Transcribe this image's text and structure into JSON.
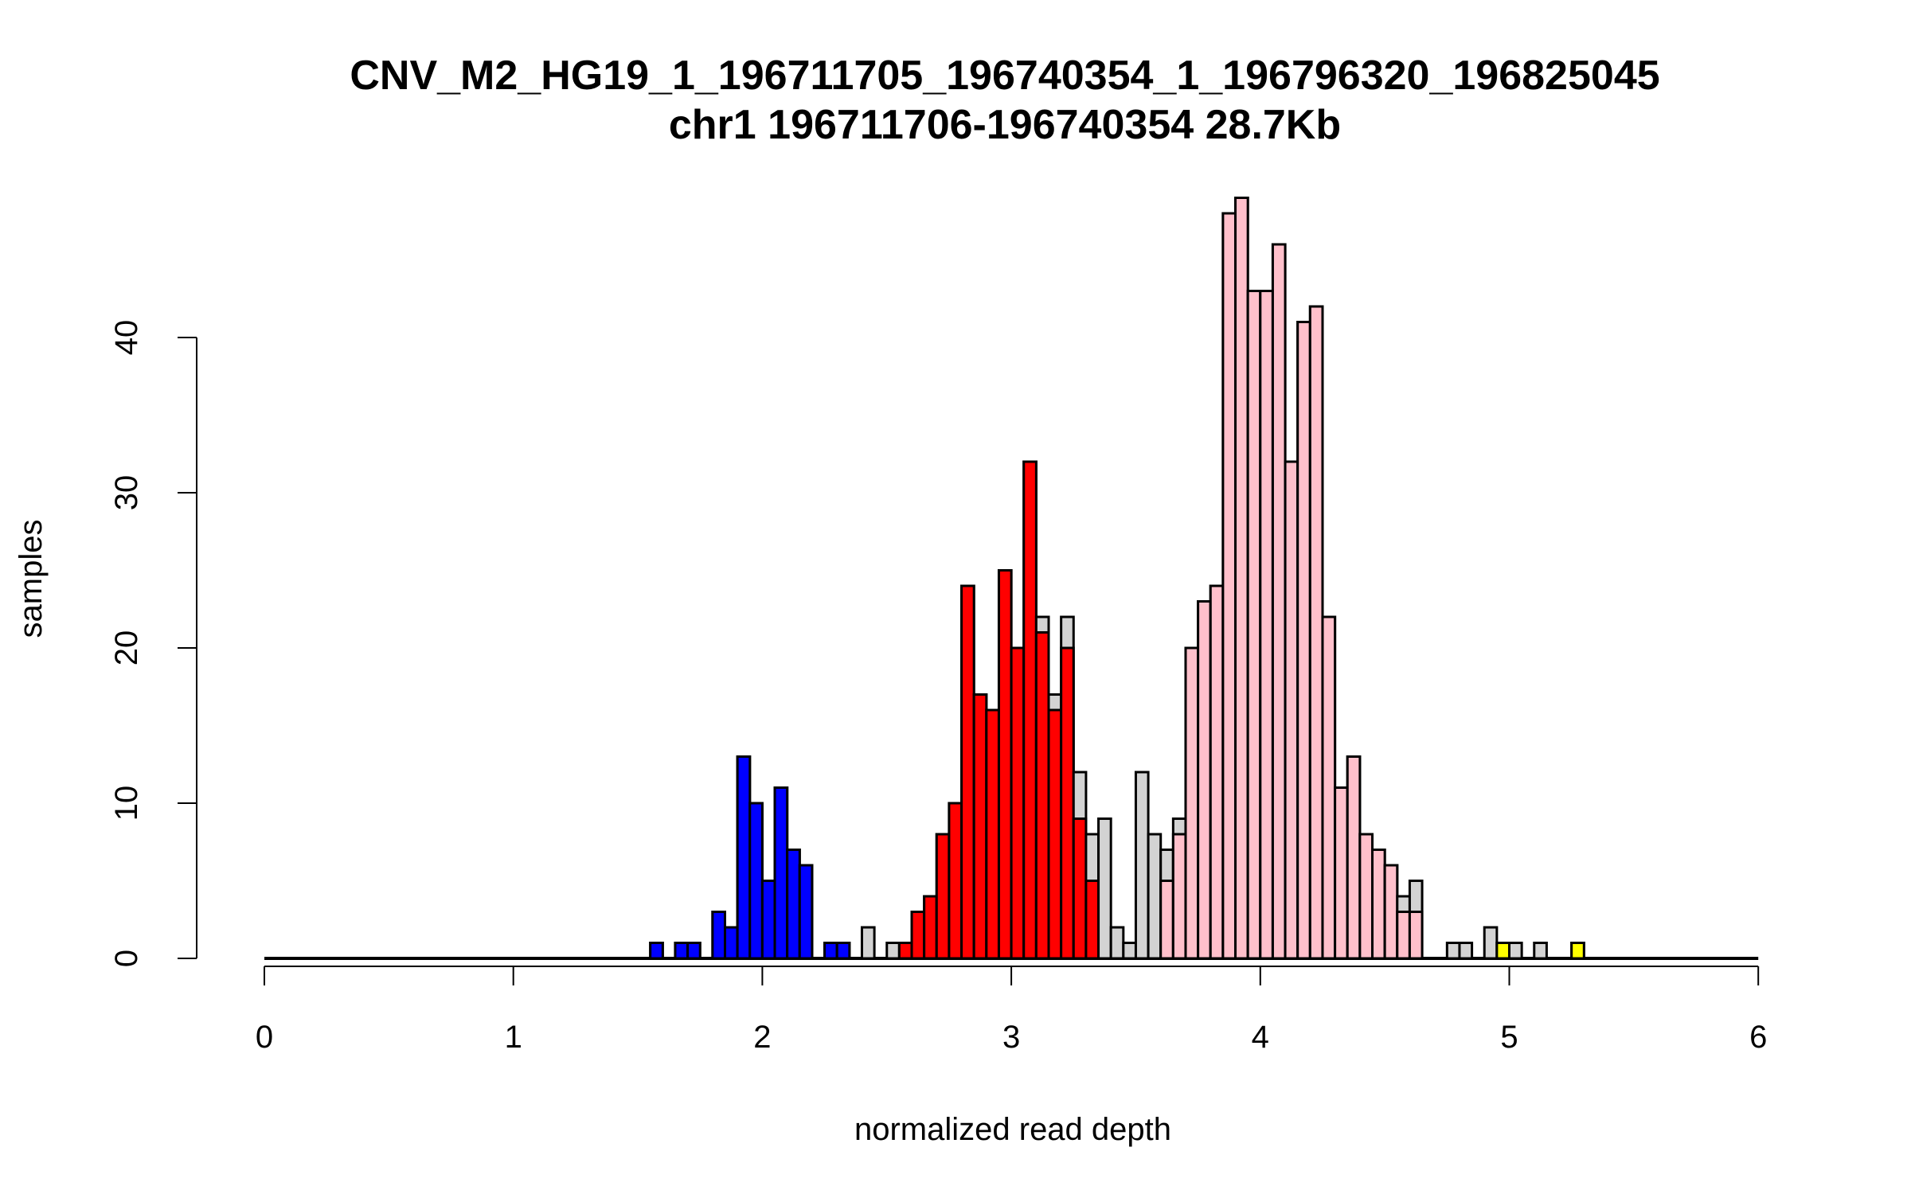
{
  "chart_data": {
    "type": "bar",
    "title": "CNV_M2_HG19_1_196711705_196740354_1_196796320_196825045",
    "subtitle": "chr1 196711706-196740354 28.7Kb",
    "xlabel": "normalized read depth",
    "ylabel": "samples",
    "xlim": [
      0,
      6
    ],
    "ylim": [
      0,
      49
    ],
    "bin_width": 0.05,
    "x_ticks": [
      "0",
      "1",
      "2",
      "3",
      "4",
      "5",
      "6"
    ],
    "y_ticks": [
      "0",
      "10",
      "20",
      "30",
      "40"
    ],
    "colors": {
      "all": "#d3d3d3",
      "blue": "#0000ff",
      "red": "#ff0000",
      "pink": "#ffc0cb",
      "yellow": "#ffff00"
    },
    "bins": [
      {
        "x": 1.55,
        "total": 1,
        "colored": 1,
        "group": "blue"
      },
      {
        "x": 1.65,
        "total": 1,
        "colored": 1,
        "group": "blue"
      },
      {
        "x": 1.7,
        "total": 1,
        "colored": 1,
        "group": "blue"
      },
      {
        "x": 1.8,
        "total": 3,
        "colored": 3,
        "group": "blue"
      },
      {
        "x": 1.85,
        "total": 2,
        "colored": 2,
        "group": "blue"
      },
      {
        "x": 1.9,
        "total": 13,
        "colored": 13,
        "group": "blue"
      },
      {
        "x": 1.95,
        "total": 10,
        "colored": 10,
        "group": "blue"
      },
      {
        "x": 2.0,
        "total": 5,
        "colored": 5,
        "group": "blue"
      },
      {
        "x": 2.05,
        "total": 11,
        "colored": 11,
        "group": "blue"
      },
      {
        "x": 2.1,
        "total": 7,
        "colored": 7,
        "group": "blue"
      },
      {
        "x": 2.15,
        "total": 6,
        "colored": 6,
        "group": "blue"
      },
      {
        "x": 2.25,
        "total": 1,
        "colored": 1,
        "group": "blue"
      },
      {
        "x": 2.3,
        "total": 1,
        "colored": 1,
        "group": "blue"
      },
      {
        "x": 2.4,
        "total": 2,
        "colored": 0,
        "group": "none"
      },
      {
        "x": 2.5,
        "total": 1,
        "colored": 0,
        "group": "none"
      },
      {
        "x": 2.55,
        "total": 1,
        "colored": 1,
        "group": "red"
      },
      {
        "x": 2.6,
        "total": 3,
        "colored": 3,
        "group": "red"
      },
      {
        "x": 2.65,
        "total": 4,
        "colored": 4,
        "group": "red"
      },
      {
        "x": 2.7,
        "total": 8,
        "colored": 8,
        "group": "red"
      },
      {
        "x": 2.75,
        "total": 10,
        "colored": 10,
        "group": "red"
      },
      {
        "x": 2.8,
        "total": 24,
        "colored": 24,
        "group": "red"
      },
      {
        "x": 2.85,
        "total": 17,
        "colored": 17,
        "group": "red"
      },
      {
        "x": 2.9,
        "total": 16,
        "colored": 16,
        "group": "red"
      },
      {
        "x": 2.95,
        "total": 25,
        "colored": 25,
        "group": "red"
      },
      {
        "x": 3.0,
        "total": 20,
        "colored": 20,
        "group": "red"
      },
      {
        "x": 3.05,
        "total": 32,
        "colored": 32,
        "group": "red"
      },
      {
        "x": 3.1,
        "total": 22,
        "colored": 21,
        "group": "red"
      },
      {
        "x": 3.15,
        "total": 17,
        "colored": 16,
        "group": "red"
      },
      {
        "x": 3.2,
        "total": 22,
        "colored": 20,
        "group": "red"
      },
      {
        "x": 3.25,
        "total": 12,
        "colored": 9,
        "group": "red"
      },
      {
        "x": 3.3,
        "total": 8,
        "colored": 5,
        "group": "red"
      },
      {
        "x": 3.35,
        "total": 9,
        "colored": 0,
        "group": "none"
      },
      {
        "x": 3.4,
        "total": 2,
        "colored": 0,
        "group": "none"
      },
      {
        "x": 3.45,
        "total": 1,
        "colored": 0,
        "group": "none"
      },
      {
        "x": 3.5,
        "total": 12,
        "colored": 0,
        "group": "none"
      },
      {
        "x": 3.55,
        "total": 8,
        "colored": 0,
        "group": "none"
      },
      {
        "x": 3.6,
        "total": 7,
        "colored": 5,
        "group": "pink"
      },
      {
        "x": 3.65,
        "total": 9,
        "colored": 8,
        "group": "pink"
      },
      {
        "x": 3.7,
        "total": 20,
        "colored": 20,
        "group": "pink"
      },
      {
        "x": 3.75,
        "total": 23,
        "colored": 23,
        "group": "pink"
      },
      {
        "x": 3.8,
        "total": 24,
        "colored": 24,
        "group": "pink"
      },
      {
        "x": 3.85,
        "total": 48,
        "colored": 48,
        "group": "pink"
      },
      {
        "x": 3.9,
        "total": 49,
        "colored": 49,
        "group": "pink"
      },
      {
        "x": 3.95,
        "total": 43,
        "colored": 43,
        "group": "pink"
      },
      {
        "x": 4.0,
        "total": 43,
        "colored": 43,
        "group": "pink"
      },
      {
        "x": 4.05,
        "total": 46,
        "colored": 46,
        "group": "pink"
      },
      {
        "x": 4.1,
        "total": 32,
        "colored": 32,
        "group": "pink"
      },
      {
        "x": 4.15,
        "total": 41,
        "colored": 41,
        "group": "pink"
      },
      {
        "x": 4.2,
        "total": 42,
        "colored": 42,
        "group": "pink"
      },
      {
        "x": 4.25,
        "total": 22,
        "colored": 22,
        "group": "pink"
      },
      {
        "x": 4.3,
        "total": 11,
        "colored": 11,
        "group": "pink"
      },
      {
        "x": 4.35,
        "total": 13,
        "colored": 13,
        "group": "pink"
      },
      {
        "x": 4.4,
        "total": 8,
        "colored": 8,
        "group": "pink"
      },
      {
        "x": 4.45,
        "total": 7,
        "colored": 7,
        "group": "pink"
      },
      {
        "x": 4.5,
        "total": 6,
        "colored": 6,
        "group": "pink"
      },
      {
        "x": 4.55,
        "total": 4,
        "colored": 3,
        "group": "pink"
      },
      {
        "x": 4.6,
        "total": 5,
        "colored": 3,
        "group": "pink"
      },
      {
        "x": 4.75,
        "total": 1,
        "colored": 0,
        "group": "none"
      },
      {
        "x": 4.8,
        "total": 1,
        "colored": 0,
        "group": "none"
      },
      {
        "x": 4.9,
        "total": 2,
        "colored": 0,
        "group": "none"
      },
      {
        "x": 4.95,
        "total": 1,
        "colored": 1,
        "group": "yellow"
      },
      {
        "x": 5.0,
        "total": 1,
        "colored": 0,
        "group": "none"
      },
      {
        "x": 5.1,
        "total": 1,
        "colored": 0,
        "group": "none"
      },
      {
        "x": 5.25,
        "total": 1,
        "colored": 1,
        "group": "yellow"
      }
    ]
  }
}
